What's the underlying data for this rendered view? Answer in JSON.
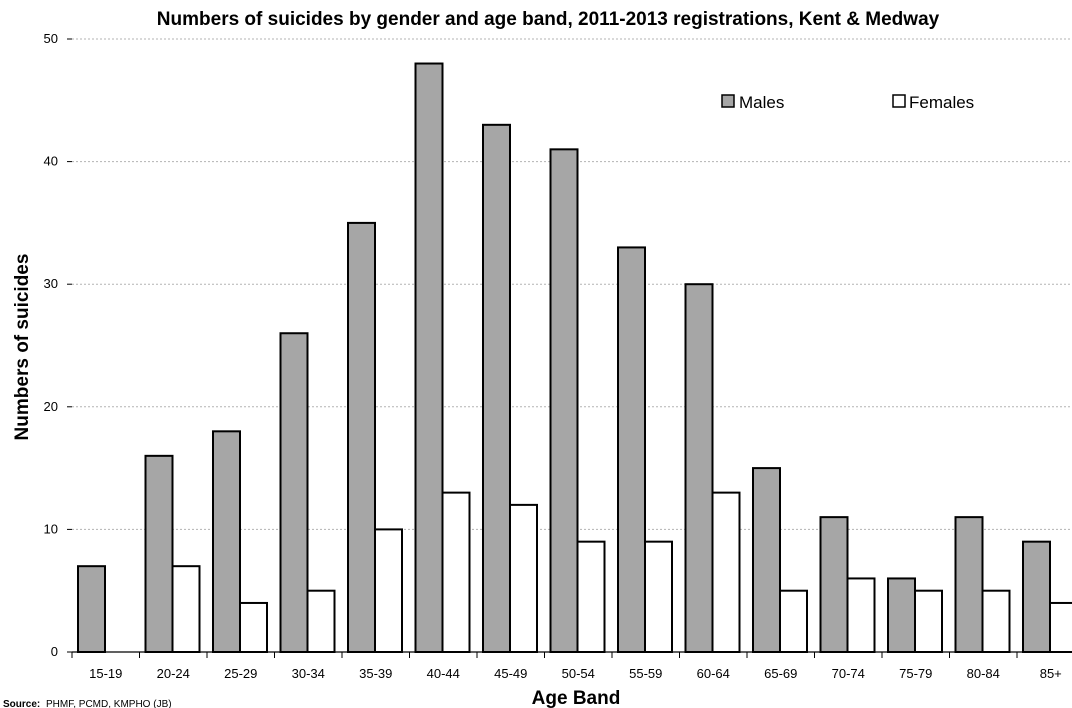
{
  "chart_data": {
    "type": "bar",
    "title": "Numbers of suicides by gender and age band, 2011-2013 registrations, Kent & Medway",
    "xlabel": "Age Band",
    "ylabel": "Numbers of suicides",
    "ylim": [
      0,
      50
    ],
    "yticks": [
      "0",
      "10",
      "20",
      "30",
      "40",
      "50"
    ],
    "grid": true,
    "legend_position": "top-right",
    "categories": [
      "15-19",
      "20-24",
      "25-29",
      "30-34",
      "35-39",
      "40-44",
      "45-49",
      "50-54",
      "55-59",
      "60-64",
      "65-69",
      "70-74",
      "75-79",
      "80-84",
      "85+"
    ],
    "series": [
      {
        "name": "Males",
        "color": "#a6a6a6",
        "values": [
          7,
          16,
          18,
          26,
          35,
          48,
          43,
          41,
          33,
          30,
          15,
          11,
          6,
          11,
          9
        ]
      },
      {
        "name": "Females",
        "color": "#ffffff",
        "values": [
          0,
          7,
          4,
          5,
          10,
          13,
          12,
          9,
          9,
          13,
          5,
          6,
          5,
          5,
          4
        ]
      }
    ]
  },
  "source": {
    "label": "Source:",
    "text": "PHMF, PCMD, KMPHO (JB)"
  }
}
